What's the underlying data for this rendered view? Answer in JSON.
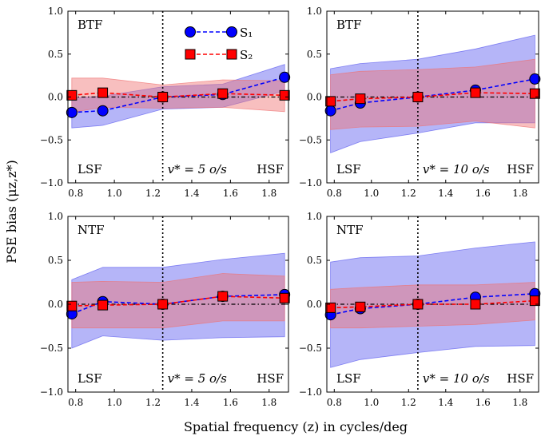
{
  "colors": {
    "s1": "#0000ff",
    "s1_band": "#5b5bf0",
    "s2": "#ff0000",
    "s2_band": "#f07070",
    "overlap": "#a24a8a"
  },
  "legend": {
    "s1_label": "S1",
    "s2_label": "S2"
  },
  "xlabel": "Spatial frequency (z) in cycles/deg",
  "ylabel": "PSE bias (μz,z*)",
  "chart_data": [
    {
      "type": "line",
      "panel_label": "BTF",
      "left_label": "LSF",
      "right_label": "HSF",
      "v_label": "v* = 5 o/s",
      "vline_x": 1.25,
      "xlim": [
        0.76,
        1.9
      ],
      "ylim": [
        -1.0,
        1.0
      ],
      "xticks": [
        "0.8",
        "1.0",
        "1.2",
        "1.4",
        "1.6",
        "1.8"
      ],
      "yticks": [
        "1.0",
        "0.5",
        "0.0",
        "−0.5",
        "−1.0"
      ],
      "x": [
        0.78,
        0.94,
        1.25,
        1.56,
        1.88
      ],
      "series": [
        {
          "name": "S1",
          "values": [
            -0.18,
            -0.16,
            0.0,
            0.03,
            0.23
          ],
          "lower": [
            -0.36,
            -0.33,
            -0.14,
            -0.12,
            0.07
          ],
          "upper": [
            -0.01,
            0.01,
            0.12,
            0.15,
            0.38
          ]
        },
        {
          "name": "S2",
          "values": [
            0.02,
            0.05,
            0.0,
            0.04,
            0.02
          ],
          "lower": [
            -0.18,
            -0.12,
            -0.13,
            -0.12,
            -0.17
          ],
          "upper": [
            0.22,
            0.22,
            0.14,
            0.2,
            0.19
          ]
        }
      ]
    },
    {
      "type": "line",
      "panel_label": "BTF",
      "left_label": "LSF",
      "right_label": "HSF",
      "v_label": "v* = 10 o/s",
      "vline_x": 1.25,
      "xlim": [
        0.76,
        1.9
      ],
      "ylim": [
        -1.0,
        1.0
      ],
      "xticks": [
        "0.8",
        "1.0",
        "1.2",
        "1.4",
        "1.6",
        "1.8"
      ],
      "yticks": [
        "1.0",
        "0.5",
        "0.0",
        "−0.5",
        "−1.0"
      ],
      "x": [
        0.78,
        0.94,
        1.25,
        1.56,
        1.88
      ],
      "series": [
        {
          "name": "S1",
          "values": [
            -0.16,
            -0.07,
            0.0,
            0.08,
            0.21
          ],
          "lower": [
            -0.65,
            -0.52,
            -0.42,
            -0.3,
            -0.3
          ],
          "upper": [
            0.33,
            0.39,
            0.44,
            0.56,
            0.72
          ]
        },
        {
          "name": "S2",
          "values": [
            -0.05,
            -0.02,
            0.0,
            0.05,
            0.04
          ],
          "lower": [
            -0.38,
            -0.35,
            -0.34,
            -0.28,
            -0.36
          ],
          "upper": [
            0.26,
            0.3,
            0.32,
            0.35,
            0.44
          ]
        }
      ]
    },
    {
      "type": "line",
      "panel_label": "NTF",
      "left_label": "LSF",
      "right_label": "HSF",
      "v_label": "v* = 5 o/s",
      "vline_x": 1.25,
      "xlim": [
        0.76,
        1.9
      ],
      "ylim": [
        -1.0,
        1.0
      ],
      "xticks": [
        "0.8",
        "1.0",
        "1.2",
        "1.4",
        "1.6",
        "1.8"
      ],
      "yticks": [
        "1.0",
        "0.5",
        "0.0",
        "−0.5",
        "−1.0"
      ],
      "x": [
        0.78,
        0.94,
        1.25,
        1.56,
        1.88
      ],
      "series": [
        {
          "name": "S1",
          "values": [
            -0.11,
            0.03,
            0.0,
            0.09,
            0.11
          ],
          "lower": [
            -0.5,
            -0.36,
            -0.41,
            -0.38,
            -0.37
          ],
          "upper": [
            0.28,
            0.42,
            0.42,
            0.51,
            0.58
          ]
        },
        {
          "name": "S2",
          "values": [
            -0.02,
            -0.01,
            0.0,
            0.09,
            0.07
          ],
          "lower": [
            -0.27,
            -0.27,
            -0.27,
            -0.19,
            -0.19
          ],
          "upper": [
            0.25,
            0.26,
            0.25,
            0.35,
            0.32
          ]
        }
      ]
    },
    {
      "type": "line",
      "panel_label": "NTF",
      "left_label": "LSF",
      "right_label": "HSF",
      "v_label": "v* = 10 o/s",
      "vline_x": 1.25,
      "xlim": [
        0.76,
        1.9
      ],
      "ylim": [
        -1.0,
        1.0
      ],
      "xticks": [
        "0.8",
        "1.0",
        "1.2",
        "1.4",
        "1.6",
        "1.8"
      ],
      "yticks": [
        "1.0",
        "0.5",
        "0.0",
        "−0.5",
        "−1.0"
      ],
      "x": [
        0.78,
        0.94,
        1.25,
        1.56,
        1.88
      ],
      "series": [
        {
          "name": "S1",
          "values": [
            -0.12,
            -0.05,
            0.0,
            0.08,
            0.12
          ],
          "lower": [
            -0.72,
            -0.63,
            -0.55,
            -0.48,
            -0.47
          ],
          "upper": [
            0.48,
            0.53,
            0.55,
            0.64,
            0.71
          ]
        },
        {
          "name": "S2",
          "values": [
            -0.04,
            -0.03,
            0.0,
            0.0,
            0.04
          ],
          "lower": [
            -0.27,
            -0.27,
            -0.25,
            -0.23,
            -0.18
          ],
          "upper": [
            0.17,
            0.19,
            0.22,
            0.22,
            0.25
          ]
        }
      ]
    }
  ]
}
